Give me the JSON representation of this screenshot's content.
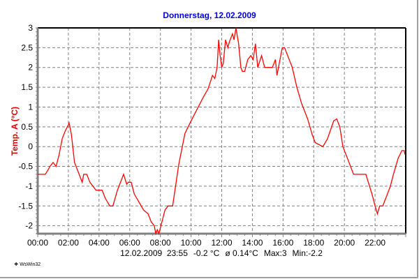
{
  "chart_data": {
    "type": "line",
    "title": "Donnerstag, 12.02.2009",
    "xlabel": "",
    "ylabel": "Temp. A  (°C)",
    "xlim": [
      0,
      24
    ],
    "ylim": [
      -2.2,
      3
    ],
    "grid": true,
    "x_tick_labels": [
      "00:00",
      "02:00",
      "04:00",
      "06:00",
      "08:00",
      "10:00",
      "12:00",
      "14:00",
      "16:00",
      "18:00",
      "20:00",
      "22:00"
    ],
    "y_ticks": [
      3,
      2.5,
      2,
      1.5,
      1,
      0.5,
      0,
      -0.5,
      -1,
      -1.5,
      -2
    ],
    "y_tick_labels": [
      "3",
      "2.5",
      "2",
      "1.5",
      "1",
      "0.5",
      "0",
      "-0.5",
      "-1",
      "-1.5",
      "-2"
    ],
    "series": [
      {
        "name": "Temp. A",
        "color": "#ff0000",
        "x_hours": [
          0,
          0.5,
          0.8,
          1.0,
          1.2,
          1.4,
          1.6,
          1.8,
          2.0,
          2.05,
          2.2,
          2.4,
          2.8,
          2.9,
          3.0,
          3.2,
          3.4,
          3.6,
          3.8,
          4.2,
          4.4,
          4.7,
          4.9,
          5.2,
          5.5,
          5.6,
          5.8,
          5.9,
          6.1,
          6.3,
          6.6,
          6.9,
          7.2,
          7.4,
          7.6,
          7.7,
          7.8,
          7.9,
          8.1,
          8.3,
          8.5,
          8.8,
          9.2,
          9.6,
          10.0,
          10.4,
          10.8,
          11.1,
          11.4,
          11.55,
          11.7,
          11.8,
          11.9,
          12.0,
          12.1,
          12.25,
          12.4,
          12.5,
          12.7,
          12.8,
          12.93,
          13.1,
          13.25,
          13.35,
          13.5,
          13.7,
          13.9,
          14.05,
          14.2,
          14.35,
          14.6,
          14.8,
          14.9,
          15.3,
          15.5,
          15.6,
          15.75,
          15.95,
          16.1,
          16.3,
          16.6,
          16.9,
          17.2,
          17.6,
          17.9,
          18.1,
          18.6,
          18.9,
          19.3,
          19.5,
          19.7,
          19.9,
          20.2,
          20.6,
          21.4,
          21.8,
          22.0,
          22.15,
          22.3,
          22.5,
          22.8,
          23.0,
          23.2,
          23.5,
          23.75,
          23.9,
          23.95
        ],
        "values": [
          -0.7,
          -0.7,
          -0.5,
          -0.4,
          -0.5,
          -0.2,
          0.2,
          0.4,
          0.55,
          0.6,
          0.3,
          -0.4,
          -0.8,
          -0.9,
          -0.7,
          -0.7,
          -0.9,
          -1.0,
          -1.1,
          -1.1,
          -1.3,
          -1.5,
          -1.5,
          -1.1,
          -0.8,
          -0.7,
          -0.95,
          -0.9,
          -0.9,
          -1.2,
          -1.4,
          -1.6,
          -1.7,
          -1.9,
          -2.0,
          -2.2,
          -2.1,
          -2.2,
          -1.9,
          -1.6,
          -1.5,
          -1.5,
          -0.45,
          0.33,
          0.65,
          0.95,
          1.25,
          1.45,
          1.8,
          1.72,
          2.0,
          2.7,
          2.3,
          2.0,
          2.1,
          2.7,
          2.5,
          2.65,
          2.85,
          2.7,
          3.0,
          2.6,
          2.0,
          1.9,
          1.9,
          2.2,
          2.3,
          2.2,
          2.6,
          2.0,
          2.3,
          2.0,
          2.0,
          2.0,
          2.2,
          1.8,
          2.1,
          2.5,
          2.5,
          2.3,
          2.0,
          1.5,
          1.1,
          0.7,
          0.3,
          0.1,
          0.0,
          0.2,
          0.65,
          0.7,
          0.5,
          0.0,
          -0.3,
          -0.7,
          -0.7,
          -1.2,
          -1.5,
          -1.7,
          -1.5,
          -1.5,
          -1.2,
          -1.0,
          -0.7,
          -0.3,
          -0.1,
          -0.1,
          -0.2
        ]
      }
    ]
  },
  "footer": {
    "datetime": "12.02.2009  23:55",
    "current": "-0.2 °C",
    "average": "ø 0.14°C",
    "max": "Max:3",
    "min": "Min:-2.2"
  },
  "brand": "WsWin32"
}
